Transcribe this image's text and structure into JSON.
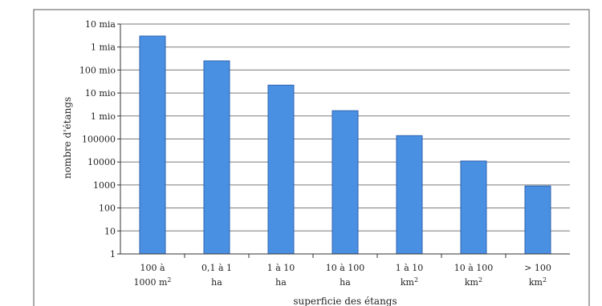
{
  "chart_data": {
    "type": "bar",
    "scale": "log10",
    "xlabel": "superficie des étangs",
    "ylabel": "nombre d'étangs",
    "ylim": [
      1,
      10000000000
    ],
    "grid": true,
    "legend": "none",
    "bar_color": "#4a90e2",
    "y_ticks": [
      {
        "value": 1,
        "label": "1"
      },
      {
        "value": 10,
        "label": "10"
      },
      {
        "value": 100,
        "label": "100"
      },
      {
        "value": 1000,
        "label": "1000"
      },
      {
        "value": 10000,
        "label": "10000"
      },
      {
        "value": 100000,
        "label": "100000"
      },
      {
        "value": 1000000,
        "label": "1 mio"
      },
      {
        "value": 10000000,
        "label": "10 mio"
      },
      {
        "value": 100000000,
        "label": "100 mio"
      },
      {
        "value": 1000000000,
        "label": "1 mia"
      },
      {
        "value": 10000000000,
        "label": "10 mia"
      }
    ],
    "categories": [
      {
        "line1": "100 à",
        "line2": "1000 m²"
      },
      {
        "line1": "0,1 à 1",
        "line2": "ha"
      },
      {
        "line1": "1 à 10",
        "line2": "ha"
      },
      {
        "line1": "10 à 100",
        "line2": "ha"
      },
      {
        "line1": "1 à 10",
        "line2": "km²"
      },
      {
        "line1": "10 à 100",
        "line2": "km²"
      },
      {
        "line1": "> 100",
        "line2": "km²"
      }
    ],
    "values": [
      3000000000,
      250000000,
      22000000,
      1700000,
      140000,
      11000,
      900
    ]
  }
}
